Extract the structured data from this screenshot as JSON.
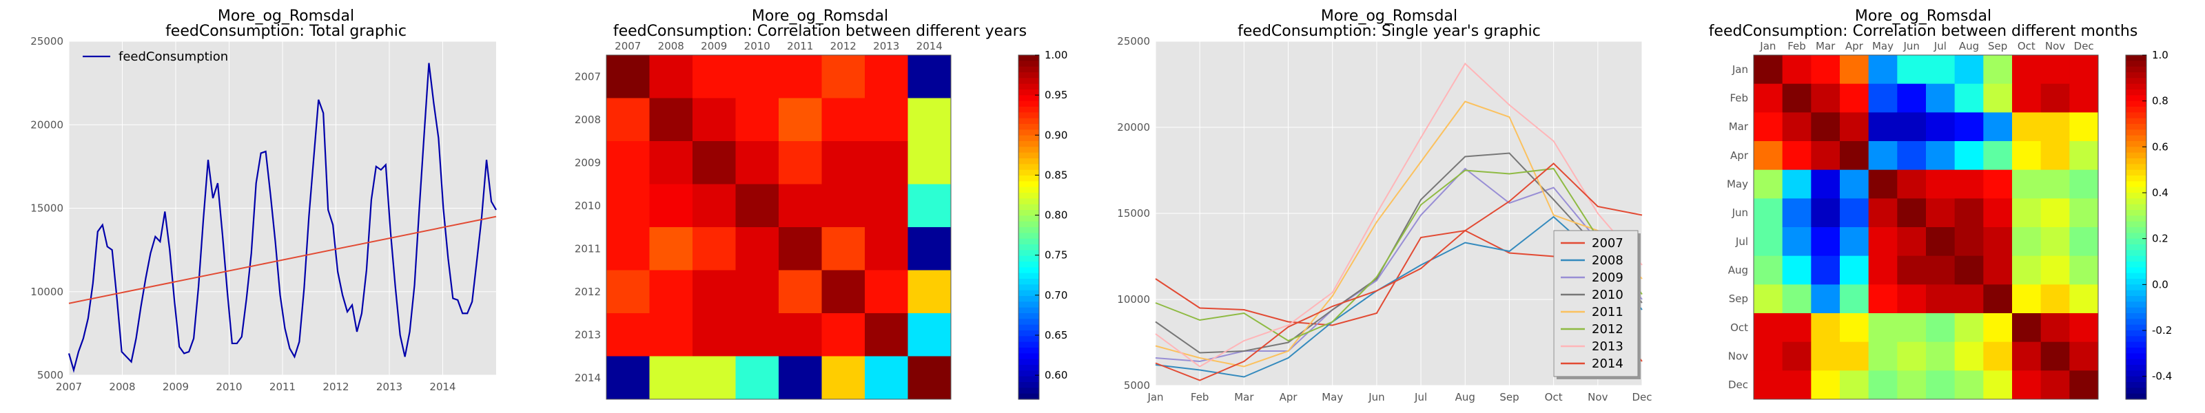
{
  "chart_data": [
    {
      "type": "line",
      "title": "More_og_Romsdal",
      "subtitle": "feedConsumption: Total graphic",
      "xlabel": "",
      "ylabel": "",
      "xlim": [
        2007,
        2015
      ],
      "ylim": [
        5000,
        25000
      ],
      "xticks": [
        "2007",
        "2008",
        "2009",
        "2010",
        "2011",
        "2012",
        "2013",
        "2014"
      ],
      "yticks": [
        "5000",
        "10000",
        "15000",
        "20000",
        "25000"
      ],
      "legend": [
        "feedConsumption"
      ],
      "series": [
        {
          "name": "feedConsumption",
          "color": "#0000aa",
          "values": [
            6300,
            5300,
            6400,
            7200,
            8400,
            10500,
            13600,
            14000,
            12700,
            12500,
            9600,
            6400,
            6100,
            5800,
            7200,
            9100,
            10800,
            12300,
            13300,
            13000,
            14800,
            12500,
            9400,
            6700,
            6300,
            6400,
            7200,
            10300,
            14300,
            17900,
            15600,
            16500,
            13400,
            10000,
            6900,
            6900,
            7300,
            9600,
            12300,
            16500,
            18300,
            18400,
            15800,
            13000,
            9800,
            7800,
            6600,
            6100,
            7000,
            10200,
            14500,
            18000,
            21500,
            20700,
            14900,
            14000,
            11200,
            9800,
            8800,
            9200,
            7600,
            8700,
            11300,
            15500,
            17500,
            17300,
            17600,
            13600,
            10300,
            7400,
            6100,
            7600,
            10400,
            15000,
            19400,
            23700,
            21300,
            19200,
            15000,
            12000,
            9600,
            9500,
            8700,
            8700,
            9400,
            11900,
            14500,
            17900,
            15400,
            14900
          ]
        },
        {
          "name": "trend",
          "color": "#e24a33",
          "values": [
            9300,
            14500
          ]
        }
      ]
    },
    {
      "type": "heatmap",
      "title": "More_og_Romsdal",
      "subtitle": "feedConsumption: Correlation between different years",
      "labels": [
        "2007",
        "2008",
        "2009",
        "2010",
        "2011",
        "2012",
        "2013",
        "2014"
      ],
      "colorbar": {
        "min": 0.57,
        "max": 1.0,
        "ticks": [
          "1.00",
          "0.95",
          "0.90",
          "0.85",
          "0.80",
          "0.75",
          "0.70",
          "0.65",
          "0.60"
        ]
      },
      "values": [
        [
          1.0,
          0.96,
          0.94,
          0.94,
          0.94,
          0.92,
          0.94,
          0.58
        ],
        [
          0.93,
          0.99,
          0.96,
          0.94,
          0.91,
          0.94,
          0.94,
          0.82
        ],
        [
          0.94,
          0.96,
          0.99,
          0.96,
          0.93,
          0.96,
          0.96,
          0.82
        ],
        [
          0.94,
          0.95,
          0.96,
          0.99,
          0.96,
          0.96,
          0.96,
          0.75
        ],
        [
          0.94,
          0.91,
          0.93,
          0.96,
          0.99,
          0.92,
          0.96,
          0.58
        ],
        [
          0.92,
          0.94,
          0.96,
          0.96,
          0.92,
          0.99,
          0.94,
          0.86
        ],
        [
          0.94,
          0.94,
          0.96,
          0.96,
          0.96,
          0.94,
          0.99,
          0.72
        ],
        [
          0.58,
          0.82,
          0.82,
          0.75,
          0.58,
          0.86,
          0.72,
          1.0
        ]
      ]
    },
    {
      "type": "line",
      "title": "More_og_Romsdal",
      "subtitle": "feedConsumption: Single year's graphic",
      "xlim": [
        0,
        11
      ],
      "ylim": [
        5000,
        25000
      ],
      "xticks": [
        "Jan",
        "Feb",
        "Mar",
        "Apr",
        "May",
        "Jun",
        "Jul",
        "Aug",
        "Sep",
        "Oct",
        "Nov",
        "Dec"
      ],
      "yticks": [
        "5000",
        "10000",
        "15000",
        "20000",
        "25000"
      ],
      "legend_position": "bottom-right",
      "series": [
        {
          "name": "2007",
          "color": "#e24a33",
          "values": [
            11200,
            9500,
            9400,
            8700,
            8500,
            9200,
            13600,
            14000,
            12700,
            12500,
            9600,
            6400
          ]
        },
        {
          "name": "2008",
          "color": "#348abd",
          "values": [
            6200,
            5900,
            5500,
            6600,
            8700,
            10500,
            12000,
            13300,
            12800,
            14800,
            12500,
            9400
          ]
        },
        {
          "name": "2009",
          "color": "#988ed5",
          "values": [
            6600,
            6400,
            7000,
            7000,
            9400,
            11100,
            14900,
            17600,
            15600,
            16500,
            13400,
            10000
          ]
        },
        {
          "name": "2010",
          "color": "#777777",
          "values": [
            8700,
            6900,
            7000,
            7500,
            9400,
            11200,
            15800,
            18300,
            18500,
            15800,
            13000,
            9800
          ]
        },
        {
          "name": "2011",
          "color": "#fbc15e",
          "values": [
            7300,
            6600,
            6100,
            7000,
            10200,
            14500,
            18000,
            21500,
            20600,
            14900,
            14000,
            11200
          ]
        },
        {
          "name": "2012",
          "color": "#8eba42",
          "values": [
            9800,
            8800,
            9200,
            7600,
            8700,
            11300,
            15500,
            17500,
            17300,
            17600,
            13600,
            10300
          ]
        },
        {
          "name": "2013",
          "color": "#ffb5b8",
          "values": [
            8000,
            6100,
            7600,
            8500,
            10400,
            15000,
            19400,
            23700,
            21300,
            19200,
            15000,
            12000
          ]
        },
        {
          "name": "2014",
          "color": "#e24a33",
          "values": [
            6300,
            5300,
            6400,
            8400,
            9600,
            10500,
            11800,
            14000,
            15700,
            17900,
            15400,
            14900
          ]
        }
      ]
    },
    {
      "type": "heatmap",
      "title": "More_og_Romsdal",
      "subtitle": "feedConsumption: Correlation between different months",
      "labels": [
        "Jan",
        "Feb",
        "Mar",
        "Apr",
        "May",
        "Jun",
        "Jul",
        "Aug",
        "Sep",
        "Oct",
        "Nov",
        "Dec"
      ],
      "colorbar": {
        "min": -0.5,
        "max": 1.0,
        "ticks": [
          "1.0",
          "0.8",
          "0.6",
          "0.4",
          "0.2",
          "0.0",
          "-0.2",
          "-0.4"
        ]
      },
      "values": [
        [
          1.0,
          0.85,
          0.8,
          0.65,
          -0.1,
          0.1,
          0.1,
          0.0,
          0.3,
          0.85,
          0.85,
          0.85
        ],
        [
          0.85,
          1.0,
          0.9,
          0.8,
          -0.2,
          -0.3,
          -0.1,
          0.1,
          0.35,
          0.85,
          0.9,
          0.85
        ],
        [
          0.8,
          0.9,
          1.0,
          0.9,
          -0.4,
          -0.4,
          -0.35,
          -0.3,
          -0.1,
          0.5,
          0.5,
          0.45
        ],
        [
          0.65,
          0.8,
          0.9,
          1.0,
          -0.1,
          -0.2,
          -0.1,
          0.05,
          0.2,
          0.45,
          0.5,
          0.35
        ],
        [
          0.3,
          0.0,
          -0.35,
          -0.1,
          1.0,
          0.9,
          0.85,
          0.85,
          0.8,
          0.3,
          0.3,
          0.25
        ],
        [
          0.2,
          -0.15,
          -0.4,
          -0.2,
          0.9,
          1.0,
          0.9,
          0.95,
          0.85,
          0.35,
          0.4,
          0.3
        ],
        [
          0.2,
          -0.1,
          -0.3,
          -0.1,
          0.85,
          0.9,
          1.0,
          0.95,
          0.9,
          0.3,
          0.35,
          0.25
        ],
        [
          0.25,
          0.05,
          -0.25,
          0.05,
          0.85,
          0.95,
          0.95,
          1.0,
          0.9,
          0.35,
          0.4,
          0.3
        ],
        [
          0.35,
          0.25,
          -0.1,
          0.2,
          0.8,
          0.85,
          0.9,
          0.9,
          1.0,
          0.45,
          0.5,
          0.4
        ],
        [
          0.85,
          0.85,
          0.5,
          0.45,
          0.3,
          0.3,
          0.25,
          0.35,
          0.45,
          1.0,
          0.9,
          0.85
        ],
        [
          0.85,
          0.9,
          0.5,
          0.5,
          0.3,
          0.35,
          0.3,
          0.4,
          0.5,
          0.9,
          1.0,
          0.9
        ],
        [
          0.85,
          0.85,
          0.45,
          0.35,
          0.25,
          0.3,
          0.25,
          0.3,
          0.4,
          0.85,
          0.9,
          1.0
        ]
      ]
    }
  ]
}
